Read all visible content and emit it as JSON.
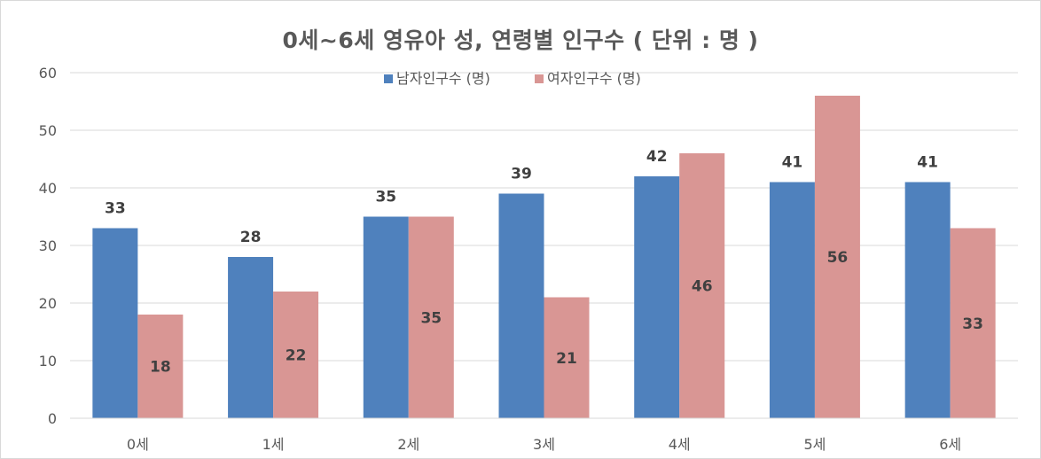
{
  "chart_data": {
    "type": "bar",
    "title": "0세~6세 영유아 성, 연령별 인구수 ( 단위 : 명  )",
    "xlabel": "",
    "ylabel": "",
    "categories": [
      "0세",
      "1세",
      "2세",
      "3세",
      "4세",
      "5세",
      "6세"
    ],
    "series": [
      {
        "name": "남자인구수 (명)",
        "values": [
          33,
          28,
          35,
          39,
          42,
          41,
          41
        ],
        "color": "#4f81bd",
        "label_position": "above"
      },
      {
        "name": "여자인구수 (명)",
        "values": [
          18,
          22,
          35,
          21,
          46,
          56,
          33
        ],
        "color": "#d99694",
        "label_position": "inside-center"
      }
    ],
    "ylim": [
      0,
      60
    ],
    "yticks": [
      0,
      10,
      20,
      30,
      40,
      50,
      60
    ],
    "grid": true,
    "legend_position": "top-center"
  }
}
